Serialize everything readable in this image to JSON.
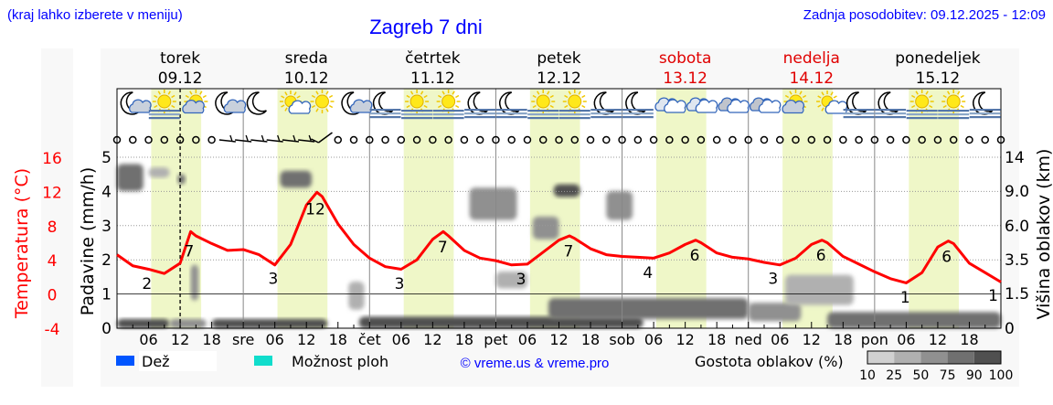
{
  "header": {
    "menu_hint": "(kraj lahko izberete v meniju)",
    "title": "Zagreb 7 dni",
    "last_update": "Zadnja posodobitev: 09.12.2025 - 12:09"
  },
  "days": [
    {
      "name": "torek",
      "date": "09.12",
      "weekend": false,
      "abbr": ""
    },
    {
      "name": "sreda",
      "date": "10.12",
      "weekend": false,
      "abbr": "sre"
    },
    {
      "name": "četrtek",
      "date": "11.12",
      "weekend": false,
      "abbr": "čet"
    },
    {
      "name": "petek",
      "date": "12.12",
      "weekend": false,
      "abbr": "pet"
    },
    {
      "name": "sobota",
      "date": "13.12",
      "weekend": true,
      "abbr": "sob"
    },
    {
      "name": "nedelja",
      "date": "14.12",
      "weekend": true,
      "abbr": "ned"
    },
    {
      "name": "ponedeljek",
      "date": "15.12",
      "weekend": false,
      "abbr": "pon"
    }
  ],
  "colors": {
    "title": "#0000ff",
    "weekend": "#e00000",
    "temperature": "#ff0000",
    "daylight": "#eff7c8",
    "rain": "#0055ff",
    "showers": "#11ddcc"
  },
  "chart_data": {
    "type": "line",
    "xlabel": "",
    "x_ticks": [
      "06",
      "12",
      "18"
    ],
    "current_time_hour": 12,
    "y_left_precip": {
      "label": "Padavine (mm/h)",
      "ticks": [
        0,
        1,
        2,
        3,
        4,
        5
      ],
      "range": [
        0,
        5
      ]
    },
    "y_left_temp": {
      "label": "Temperatura (°C)",
      "ticks": [
        -4,
        0,
        4,
        8,
        12,
        16
      ],
      "range": [
        -4,
        16
      ]
    },
    "y_right_cloud": {
      "label": "Višina oblakov (km)",
      "ticks": [
        "0",
        "1.5",
        "3.5",
        "6.0",
        "9.0",
        "14"
      ]
    },
    "grid": true,
    "temperature": {
      "hours_from_start": [
        0,
        3,
        6,
        9,
        12,
        14,
        15,
        18,
        21,
        24,
        27,
        30,
        33,
        36,
        38,
        39,
        42,
        45,
        48,
        51,
        54,
        57,
        60,
        62,
        63,
        66,
        69,
        72,
        75,
        78,
        81,
        84,
        86,
        87,
        90,
        93,
        96,
        99,
        102,
        105,
        108,
        110,
        111,
        114,
        117,
        120,
        123,
        126,
        129,
        132,
        134,
        135,
        138,
        141,
        144,
        147,
        150,
        153,
        156,
        158,
        159,
        162,
        165,
        168
      ],
      "values": [
        4.6,
        3.3,
        2.9,
        2.4,
        3.6,
        7.3,
        6.8,
        5.9,
        5.1,
        5.2,
        4.6,
        3.4,
        5.8,
        10.4,
        11.9,
        11.4,
        8.2,
        5.8,
        4.2,
        3.2,
        2.9,
        4.0,
        6.4,
        7.3,
        6.8,
        5.1,
        4.2,
        3.9,
        3.4,
        3.5,
        4.9,
        6.3,
        6.8,
        6.5,
        5.3,
        4.6,
        4.4,
        4.3,
        4.2,
        4.8,
        5.8,
        6.3,
        6.0,
        4.8,
        4.3,
        4.1,
        3.7,
        3.4,
        4.2,
        5.8,
        6.3,
        6.0,
        4.4,
        3.5,
        2.6,
        1.8,
        1.3,
        2.5,
        5.5,
        6.2,
        5.9,
        3.6,
        2.5,
        1.4
      ]
    },
    "temp_labels": [
      {
        "h": 5.7,
        "text": "2"
      },
      {
        "h": 13.7,
        "text": "7"
      },
      {
        "h": 29.7,
        "text": "3"
      },
      {
        "h": 37.7,
        "text": "12"
      },
      {
        "h": 53.7,
        "text": "3"
      },
      {
        "h": 61.9,
        "text": "7"
      },
      {
        "h": 76.8,
        "text": "3"
      },
      {
        "h": 85.8,
        "text": "7"
      },
      {
        "h": 100.9,
        "text": "4"
      },
      {
        "h": 109.8,
        "text": "6"
      },
      {
        "h": 124.7,
        "text": "3"
      },
      {
        "h": 133.8,
        "text": "6"
      },
      {
        "h": 149.8,
        "text": "1"
      },
      {
        "h": 157.7,
        "text": "6"
      },
      {
        "h": 167.6,
        "text": "1"
      }
    ],
    "precipitation_mm_h": [],
    "daylight_hours": [
      6.5,
      16
    ],
    "cloud_density": [
      {
        "h0": 0,
        "h1": 10,
        "km0": 0,
        "km1": 0.4,
        "pct": 90
      },
      {
        "h0": 10,
        "h1": 17,
        "km0": 0,
        "km1": 0.4,
        "pct": 60
      },
      {
        "h0": 18,
        "h1": 40,
        "km0": 0,
        "km1": 0.4,
        "pct": 90
      },
      {
        "h0": 14,
        "h1": 15.5,
        "km0": 1.2,
        "km1": 3.2,
        "pct": 60
      },
      {
        "h0": 0,
        "h1": 5,
        "km0": 9,
        "km1": 13,
        "pct": 85
      },
      {
        "h0": 11.5,
        "h1": 13,
        "km0": 10,
        "km1": 11.5,
        "pct": 75
      },
      {
        "h0": 6,
        "h1": 10,
        "km0": 11,
        "km1": 12.5,
        "pct": 40
      },
      {
        "h0": 31,
        "h1": 37,
        "km0": 9.5,
        "km1": 12,
        "pct": 85
      },
      {
        "h0": 44,
        "h1": 47,
        "km0": 0.8,
        "km1": 2.2,
        "pct": 25
      },
      {
        "h0": 46,
        "h1": 100,
        "km0": 0,
        "km1": 0.5,
        "pct": 90
      },
      {
        "h0": 82,
        "h1": 120,
        "km0": 0.4,
        "km1": 1.3,
        "pct": 85
      },
      {
        "h0": 120,
        "h1": 130,
        "km0": 0.3,
        "km1": 1.1,
        "pct": 60
      },
      {
        "h0": 127,
        "h1": 140,
        "km0": 1.0,
        "km1": 2.6,
        "pct": 40
      },
      {
        "h0": 67,
        "h1": 76,
        "km0": 6.5,
        "km1": 9.5,
        "pct": 60
      },
      {
        "h0": 79,
        "h1": 84,
        "km0": 5.0,
        "km1": 6.8,
        "pct": 50
      },
      {
        "h0": 83,
        "h1": 88,
        "km0": 8.5,
        "km1": 10,
        "pct": 90
      },
      {
        "h0": 93,
        "h1": 98,
        "km0": 6.5,
        "km1": 9,
        "pct": 60
      },
      {
        "h0": 72,
        "h1": 78,
        "km0": 1.8,
        "km1": 2.8,
        "pct": 25
      },
      {
        "h0": 135,
        "h1": 168,
        "km0": 0,
        "km1": 0.7,
        "pct": 85
      }
    ],
    "wind": [
      "calm",
      "calm",
      "calm",
      "calm",
      "calm",
      "calm",
      "calm",
      "barb",
      "barb",
      "barb",
      "barb",
      "barb",
      "barb",
      "barb-strong",
      "calm",
      "calm",
      "calm",
      "calm",
      "calm",
      "calm",
      "calm",
      "calm",
      "calm",
      "calm",
      "calm",
      "calm",
      "calm",
      "calm",
      "calm",
      "calm",
      "calm",
      "calm",
      "calm",
      "calm",
      "calm",
      "calm",
      "calm",
      "calm",
      "calm",
      "calm",
      "calm",
      "calm",
      "calm",
      "calm",
      "calm",
      "calm",
      "calm",
      "calm",
      "calm",
      "calm",
      "calm",
      "calm",
      "calm",
      "calm",
      "calm",
      "calm",
      "calm"
    ],
    "weather_icons": [
      "moon-cloud",
      "sun-fog",
      "sun-cloud",
      "moon-cloud",
      "moon",
      "sun-small-cloud",
      "sun",
      "moon-cloud",
      "moon-fog",
      "sun-fog",
      "sun-fog",
      "moon-fog",
      "moon-fog",
      "sun-fog",
      "sun-fog",
      "moon-fog",
      "moon-fog",
      "cloud",
      "cloud",
      "cloud-grey",
      "cloud-grey",
      "sun-cloud",
      "sun-small-cloud",
      "moon-fog",
      "moon-fog",
      "sun-fog",
      "sun-fog",
      "moon-fog"
    ]
  },
  "legend": {
    "rain": "Dež",
    "showers": "Možnost ploh",
    "copyright": "© vreme.us & vreme.pro",
    "cloud_density_title": "Gostota oblakov (%)",
    "cloud_density_scale": [
      "10",
      "25",
      "50",
      "75",
      "90",
      "100"
    ]
  }
}
